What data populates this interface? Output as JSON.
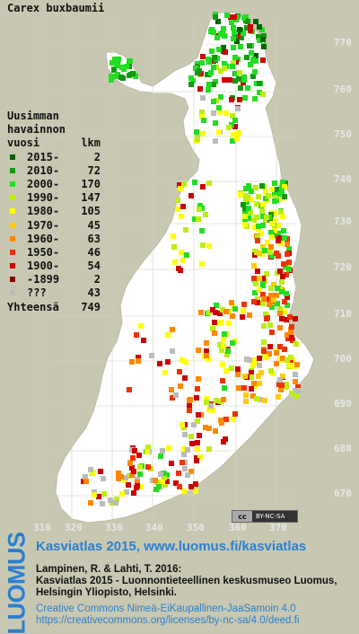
{
  "title": "Carex buxbaumii",
  "legend": {
    "header": [
      "Uusimman",
      "havainnon"
    ],
    "col_labels": {
      "year": "vuosi",
      "count": "lkm"
    },
    "entries": [
      {
        "label": "2015-",
        "count": "2",
        "color": "#006400"
      },
      {
        "label": "2010-",
        "count": "72",
        "color": "#119911"
      },
      {
        "label": "2000-",
        "count": "170",
        "color": "#22dd22"
      },
      {
        "label": "1990-",
        "count": "147",
        "color": "#bbee11"
      },
      {
        "label": "1980-",
        "count": "105",
        "color": "#ffff00"
      },
      {
        "label": "1970-",
        "count": "45",
        "color": "#ffcc00"
      },
      {
        "label": "1960-",
        "count": "63",
        "color": "#ff8800"
      },
      {
        "label": "1950-",
        "count": "46",
        "color": "#ee3300"
      },
      {
        "label": "1900-",
        "count": "54",
        "color": "#cc0000"
      },
      {
        "label": "-1899",
        "count": "2",
        "color": "#880000"
      },
      {
        "label": "???",
        "count": "43",
        "color": "#bbbbbb"
      }
    ],
    "total_label": "Yhteensä",
    "total_count": "749"
  },
  "grid": {
    "y_ticks": [
      "770",
      "760",
      "750",
      "740",
      "730",
      "720",
      "710",
      "700",
      "690",
      "680",
      "670"
    ],
    "x_ticks": [
      "310",
      "320",
      "330",
      "340",
      "350",
      "360",
      "370"
    ]
  },
  "cc_badge": {
    "cc": "cc",
    "license": "BY-NC-SA"
  },
  "footer": {
    "logo": "LUOMUS",
    "title": "Kasviatlas 2015, www.luomus.fi/kasviatlas",
    "citation_1": "Lampinen, R. & Lahti, T. 2016:",
    "citation_2": "Kasviatlas 2015 - Luonnontieteellinen keskusmuseo Luomus,",
    "citation_3": "Helsingin Yliopisto, Helsinki.",
    "license_1": "Creative Commons Nimeä-EiKaupallinen-JaaSamoin 4.0",
    "license_2": "https://creativecommons.org/licenses/by-nc-sa/4.0/deed.fi"
  },
  "colors": {
    "land": "#ffffff",
    "sea": "#c8c8b2",
    "grid": "#d0d0c0",
    "accent": "#2a7fd0"
  }
}
